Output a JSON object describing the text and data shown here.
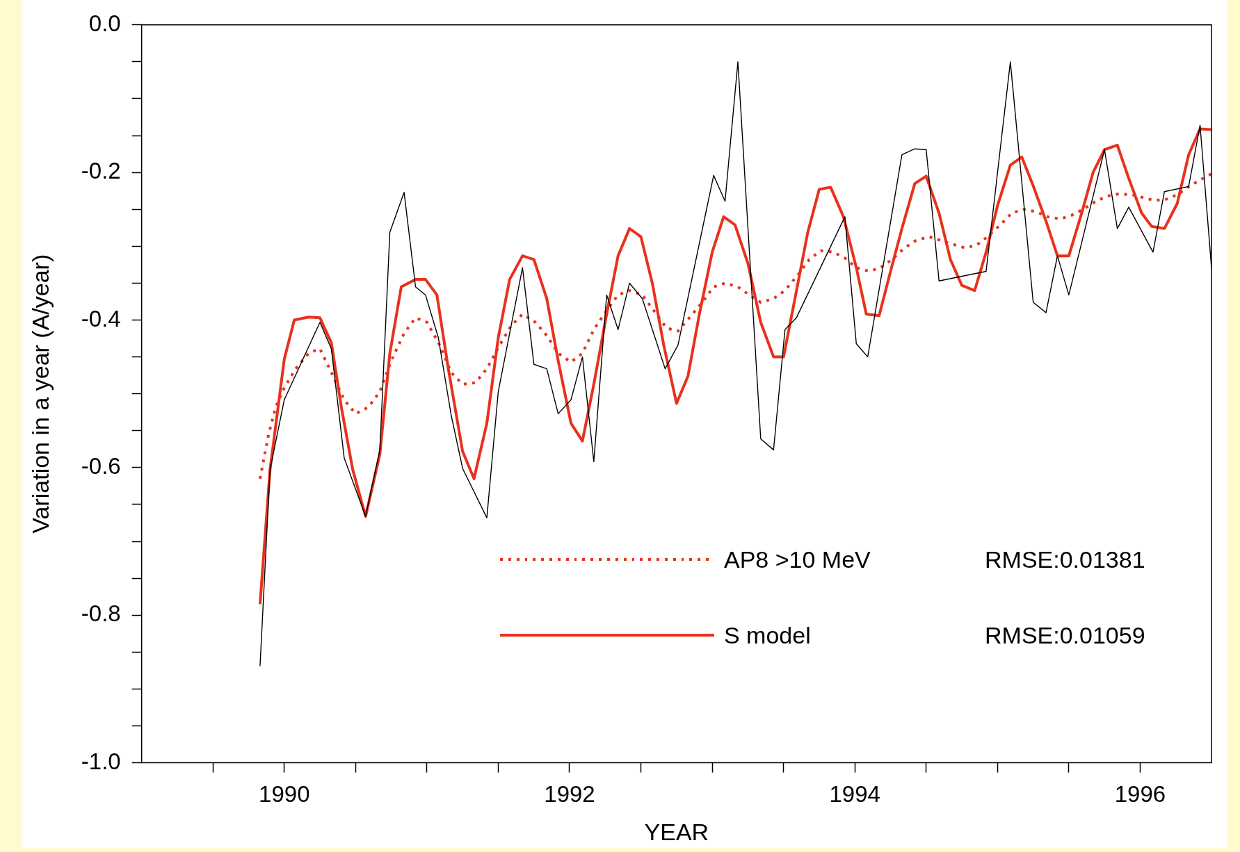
{
  "chart_data": {
    "type": "line",
    "xlabel": "YEAR",
    "ylabel": "Variation in a year (A/year)",
    "xlim": [
      1989,
      1996.5
    ],
    "xticks": [
      {
        "value": 1989.5,
        "label": null
      },
      1990,
      {
        "value": 1990.5,
        "label": null
      },
      {
        "value": 1991,
        "label": null
      },
      {
        "value": 1991.5,
        "label": null
      },
      1992,
      {
        "value": 1992.5,
        "label": null
      },
      {
        "value": 1993,
        "label": null
      },
      {
        "value": 1993.5,
        "label": null
      },
      1994,
      {
        "value": 1994.5,
        "label": null
      },
      {
        "value": 1995,
        "label": null
      },
      {
        "value": 1995.5,
        "label": null
      },
      1996
    ],
    "ylim": [
      -1,
      0
    ],
    "yticks": [
      {
        "value": -1,
        "label": "-1.0"
      },
      {
        "value": -0.95,
        "label": null
      },
      {
        "value": -0.9,
        "label": null
      },
      {
        "value": -0.85,
        "label": null
      },
      -0.8,
      {
        "value": -0.75,
        "label": null
      },
      {
        "value": -0.7,
        "label": null
      },
      {
        "value": -0.65,
        "label": null
      },
      -0.6,
      {
        "value": -0.55,
        "label": null
      },
      {
        "value": -0.5,
        "label": null
      },
      {
        "value": -0.45,
        "label": null
      },
      -0.4,
      {
        "value": -0.35,
        "label": null
      },
      {
        "value": -0.3,
        "label": null
      },
      {
        "value": -0.25,
        "label": null
      },
      -0.2,
      {
        "value": -0.15,
        "label": null
      },
      {
        "value": -0.1,
        "label": null
      },
      {
        "value": -0.05,
        "label": null
      },
      {
        "value": 0,
        "label": "0.0"
      }
    ],
    "legend": "bottom right",
    "annotations": [
      "RMSE:0.01381",
      "RMSE:0.01059"
    ],
    "series": [
      {
        "color": "#000000",
        "line_style": "solid",
        "x": [
          1989.83,
          1989.9,
          1990,
          1990.25,
          1990.33,
          1990.42,
          1990.57,
          1990.67,
          1990.74,
          1990.84,
          1990.92,
          1990.99,
          1991.08,
          1991.17,
          1991.25,
          1991.42,
          1991.5,
          1991.67,
          1991.75,
          1991.84,
          1991.92,
          1992.01,
          1992.09,
          1992.17,
          1992.26,
          1992.34,
          1992.42,
          1992.51,
          1992.67,
          1992.76,
          1993.01,
          1993.09,
          1993.18,
          1993.34,
          1993.43,
          1993.51,
          1993.59,
          1993.93,
          1994.01,
          1994.09,
          1994.33,
          1994.42,
          1994.5,
          1994.59,
          1994.92,
          1995.09,
          1995.25,
          1995.34,
          1995.42,
          1995.5,
          1995.75,
          1995.84,
          1995.92,
          1996.09,
          1996.17,
          1996.34,
          1996.42,
          1996.5
        ],
        "values": [
          -0.869,
          -0.603,
          -0.508,
          -0.403,
          -0.439,
          -0.587,
          -0.666,
          -0.576,
          -0.281,
          -0.227,
          -0.355,
          -0.366,
          -0.424,
          -0.529,
          -0.601,
          -0.668,
          -0.497,
          -0.329,
          -0.46,
          -0.466,
          -0.527,
          -0.508,
          -0.45,
          -0.592,
          -0.366,
          -0.413,
          -0.35,
          -0.371,
          -0.466,
          -0.434,
          -0.204,
          -0.239,
          -0.05,
          -0.561,
          -0.576,
          -0.413,
          -0.397,
          -0.26,
          -0.432,
          -0.45,
          -0.176,
          -0.168,
          -0.169,
          -0.347,
          -0.334,
          -0.05,
          -0.376,
          -0.39,
          -0.313,
          -0.366,
          -0.169,
          -0.276,
          -0.247,
          -0.308,
          -0.226,
          -0.219,
          -0.136,
          -0.329
        ]
      },
      {
        "name": "AP8 >10 MeV",
        "color": "#e8321e",
        "line_style": "dotted",
        "x": [
          1989.83,
          1989.89,
          1989.94,
          1990,
          1990.08,
          1990.17,
          1990.25,
          1990.33,
          1990.42,
          1990.5,
          1990.59,
          1990.67,
          1990.75,
          1990.84,
          1990.92,
          1991,
          1991.09,
          1991.17,
          1991.25,
          1991.34,
          1991.42,
          1991.51,
          1991.59,
          1991.67,
          1991.76,
          1991.84,
          1991.92,
          1992.01,
          1992.09,
          1992.17,
          1992.26,
          1992.34,
          1992.42,
          1992.51,
          1992.59,
          1992.68,
          1992.76,
          1992.84,
          1992.93,
          1993.01,
          1993.09,
          1993.18,
          1993.26,
          1993.34,
          1993.43,
          1993.51,
          1993.6,
          1993.68,
          1993.76,
          1993.85,
          1993.93,
          1994.01,
          1994.1,
          1994.18,
          1994.26,
          1994.35,
          1994.43,
          1994.52,
          1994.6,
          1994.68,
          1994.77,
          1994.85,
          1994.93,
          1995.02,
          1995.1,
          1995.18,
          1995.27,
          1995.35,
          1995.44,
          1995.52,
          1995.6,
          1995.69,
          1995.77,
          1995.85,
          1995.94,
          1996.02,
          1996.1,
          1996.19,
          1996.27,
          1996.35,
          1996.44,
          1996.5
        ],
        "values": [
          -0.615,
          -0.555,
          -0.518,
          -0.492,
          -0.466,
          -0.445,
          -0.439,
          -0.471,
          -0.508,
          -0.527,
          -0.518,
          -0.497,
          -0.455,
          -0.418,
          -0.397,
          -0.403,
          -0.434,
          -0.471,
          -0.487,
          -0.485,
          -0.466,
          -0.434,
          -0.408,
          -0.392,
          -0.403,
          -0.421,
          -0.445,
          -0.457,
          -0.445,
          -0.413,
          -0.387,
          -0.366,
          -0.36,
          -0.366,
          -0.387,
          -0.411,
          -0.415,
          -0.397,
          -0.376,
          -0.355,
          -0.35,
          -0.355,
          -0.366,
          -0.376,
          -0.371,
          -0.36,
          -0.339,
          -0.318,
          -0.306,
          -0.308,
          -0.316,
          -0.329,
          -0.334,
          -0.329,
          -0.318,
          -0.302,
          -0.292,
          -0.287,
          -0.292,
          -0.297,
          -0.302,
          -0.299,
          -0.287,
          -0.271,
          -0.255,
          -0.25,
          -0.253,
          -0.26,
          -0.263,
          -0.258,
          -0.25,
          -0.239,
          -0.232,
          -0.229,
          -0.23,
          -0.234,
          -0.238,
          -0.236,
          -0.229,
          -0.218,
          -0.208,
          -0.202
        ]
      },
      {
        "name": "S model",
        "color": "#e8321e",
        "line_style": "solid",
        "x": [
          1989.83,
          1989.9,
          1990,
          1990.07,
          1990.17,
          1990.25,
          1990.33,
          1990.4,
          1990.48,
          1990.57,
          1990.67,
          1990.74,
          1990.82,
          1990.92,
          1990.99,
          1991.07,
          1991.15,
          1991.25,
          1991.33,
          1991.42,
          1991.5,
          1991.58,
          1991.67,
          1991.75,
          1991.84,
          1991.92,
          1992.01,
          1992.09,
          1992.17,
          1992.26,
          1992.34,
          1992.42,
          1992.5,
          1992.58,
          1992.66,
          1992.75,
          1992.83,
          1992.91,
          1993,
          1993.08,
          1993.16,
          1993.25,
          1993.34,
          1993.43,
          1993.5,
          1993.58,
          1993.67,
          1993.75,
          1993.83,
          1993.92,
          1994.01,
          1994.08,
          1994.17,
          1994.25,
          1994.33,
          1994.42,
          1994.5,
          1994.59,
          1994.67,
          1994.75,
          1994.84,
          1994.92,
          1995,
          1995.09,
          1995.17,
          1995.25,
          1995.34,
          1995.42,
          1995.5,
          1995.59,
          1995.67,
          1995.75,
          1995.84,
          1995.92,
          1996.01,
          1996.08,
          1996.17,
          1996.26,
          1996.34,
          1996.42,
          1996.5
        ],
        "values": [
          -0.785,
          -0.603,
          -0.453,
          -0.4,
          -0.396,
          -0.397,
          -0.431,
          -0.518,
          -0.603,
          -0.666,
          -0.582,
          -0.445,
          -0.355,
          -0.345,
          -0.345,
          -0.366,
          -0.466,
          -0.578,
          -0.615,
          -0.54,
          -0.424,
          -0.345,
          -0.313,
          -0.318,
          -0.371,
          -0.455,
          -0.54,
          -0.564,
          -0.487,
          -0.392,
          -0.313,
          -0.276,
          -0.287,
          -0.35,
          -0.434,
          -0.513,
          -0.476,
          -0.392,
          -0.308,
          -0.26,
          -0.271,
          -0.323,
          -0.403,
          -0.45,
          -0.45,
          -0.371,
          -0.281,
          -0.223,
          -0.22,
          -0.26,
          -0.329,
          -0.392,
          -0.394,
          -0.334,
          -0.276,
          -0.215,
          -0.205,
          -0.255,
          -0.318,
          -0.353,
          -0.36,
          -0.308,
          -0.245,
          -0.19,
          -0.179,
          -0.218,
          -0.266,
          -0.313,
          -0.313,
          -0.255,
          -0.2,
          -0.169,
          -0.163,
          -0.208,
          -0.255,
          -0.273,
          -0.276,
          -0.242,
          -0.176,
          -0.141,
          -0.142
        ]
      }
    ]
  }
}
